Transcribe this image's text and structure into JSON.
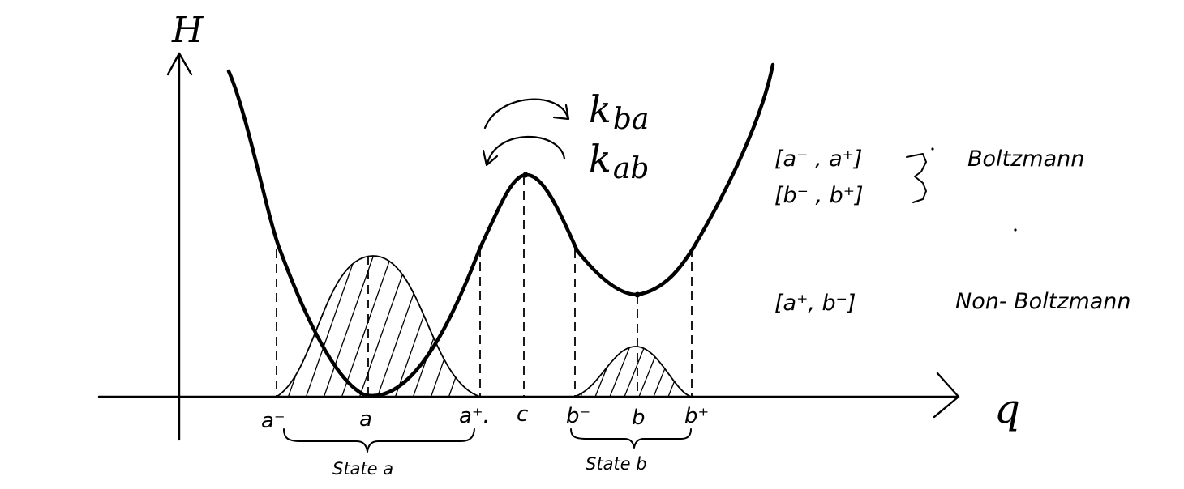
{
  "axes": {
    "y_label": "H",
    "x_label": "q"
  },
  "points": {
    "a_minus": "a⁻",
    "a": "a",
    "a_plus": "a⁺.",
    "c": "c",
    "b_minus": "b⁻",
    "b": "b",
    "b_plus": "b⁺"
  },
  "states": {
    "a": "State a",
    "b": "State b"
  },
  "rates": {
    "forward": "k",
    "forward_sub": "ba",
    "backward": "k",
    "backward_sub": "ab"
  },
  "notes": {
    "interval_a": "[a⁻ , a⁺]",
    "interval_b": "[b⁻ , b⁺]",
    "boltzmann": "Boltzmann",
    "interval_ab": "[a⁺,  b⁻]",
    "non_boltzmann": "Non- Boltzmann"
  }
}
